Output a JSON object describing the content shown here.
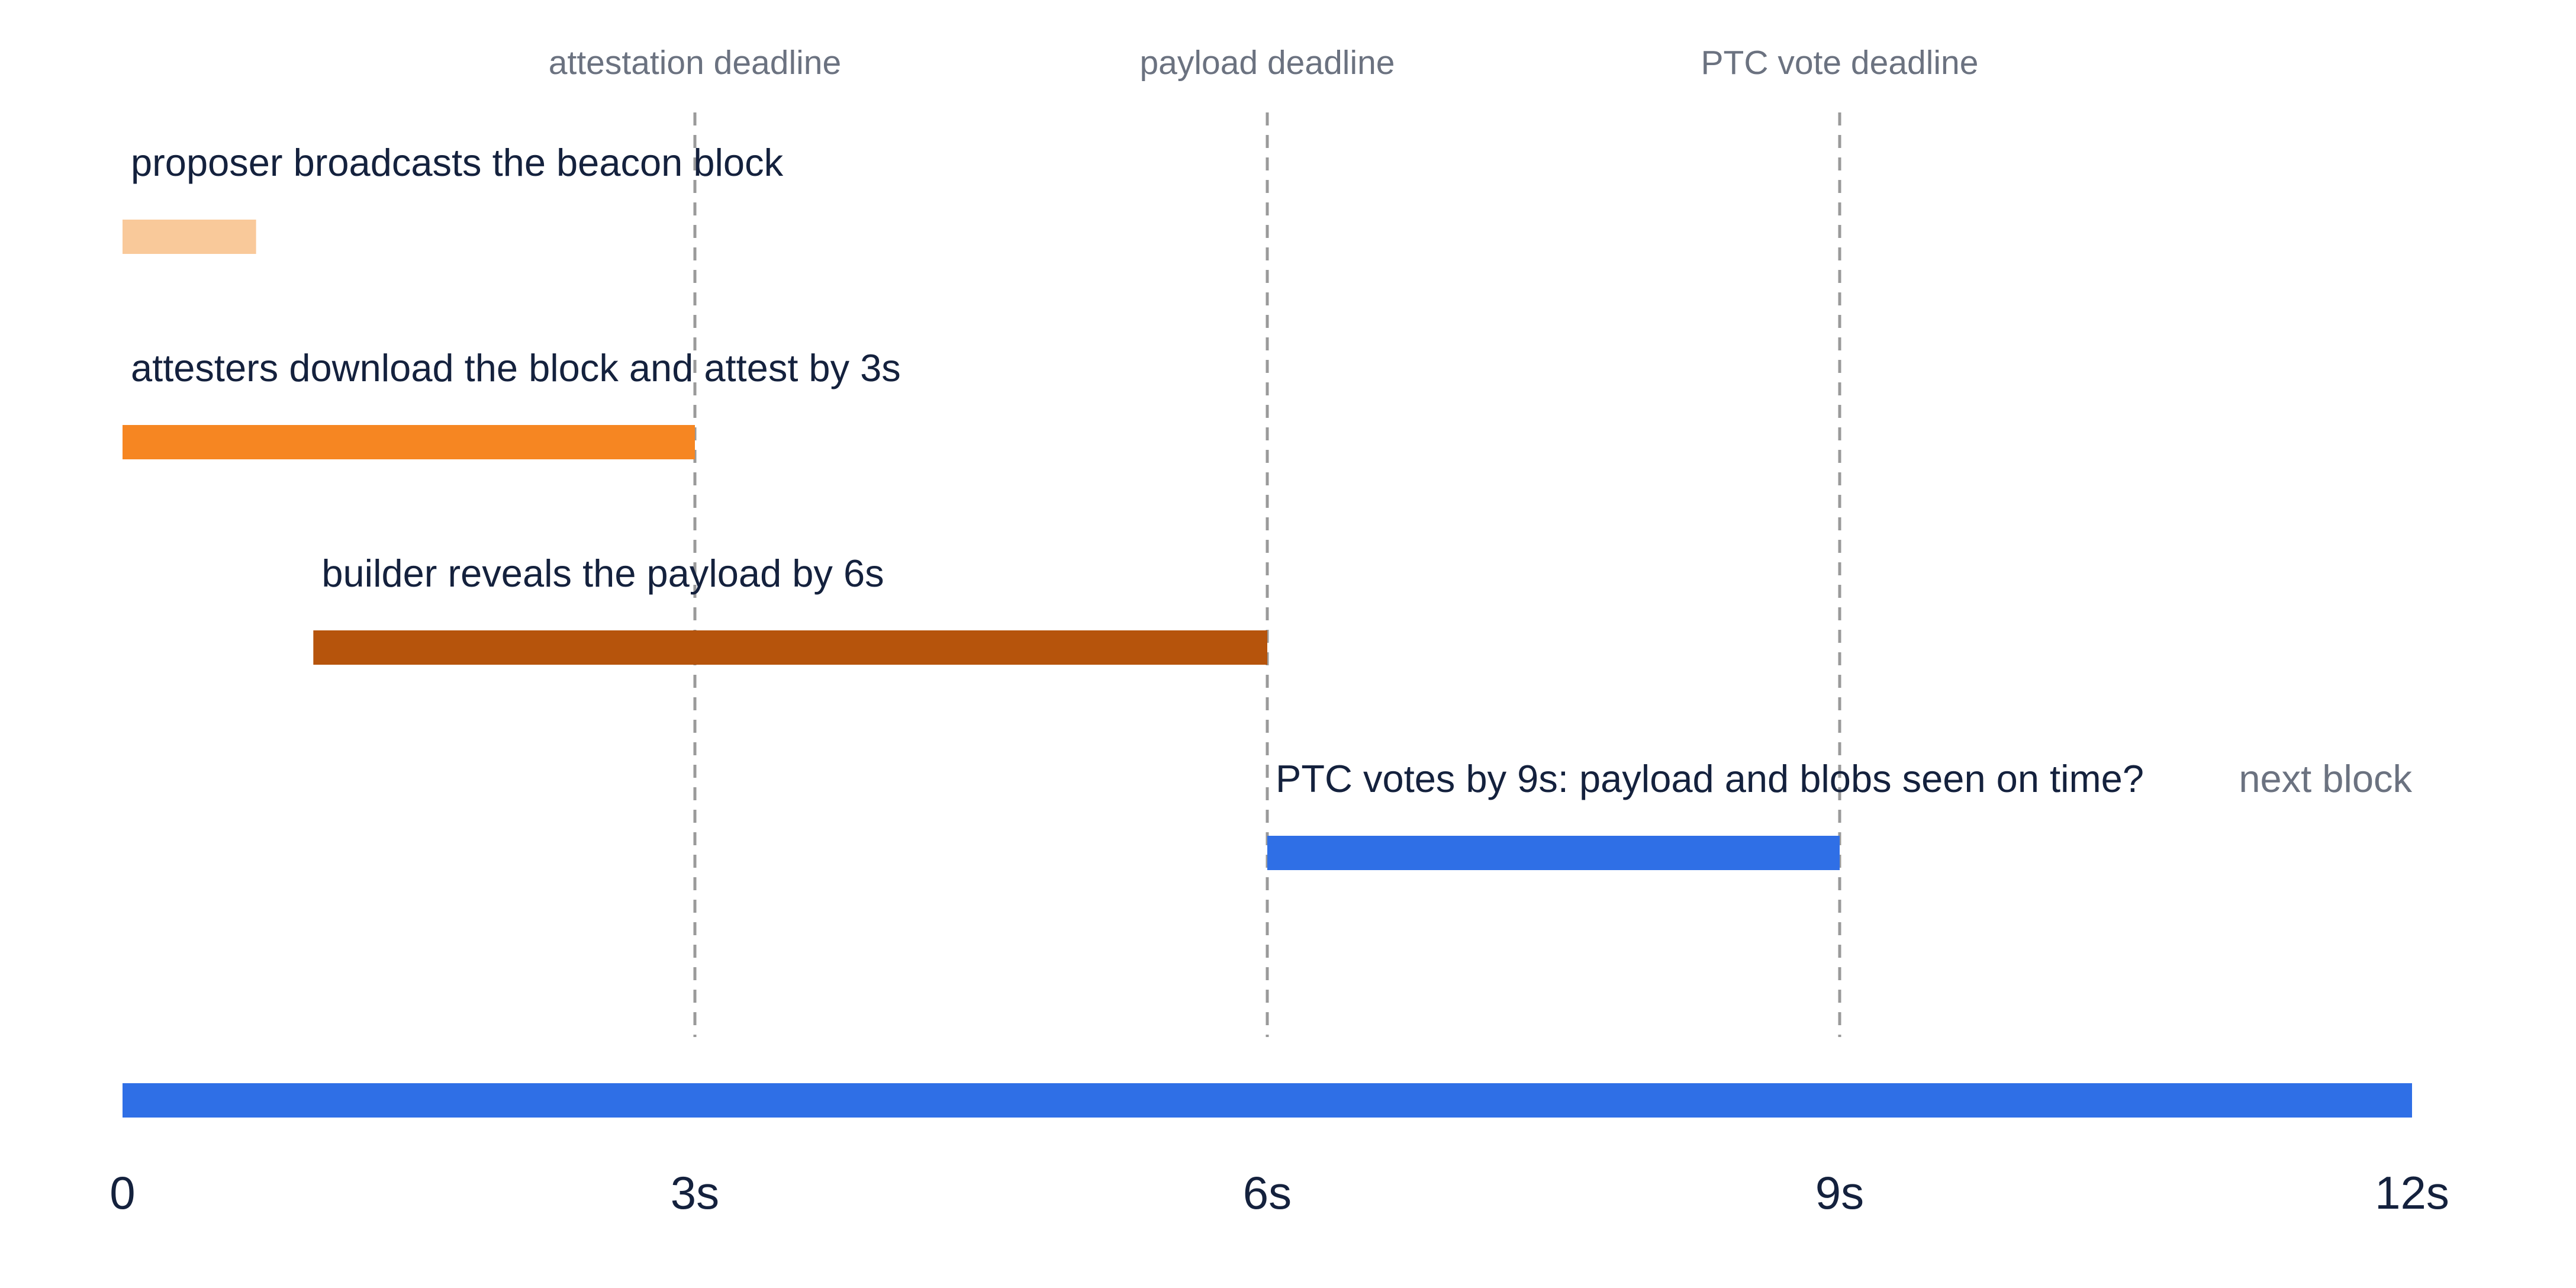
{
  "timeline": {
    "unit": "s",
    "start": 0,
    "end": 12,
    "ticks": [
      {
        "value": 0,
        "label": "0"
      },
      {
        "value": 3,
        "label": "3s"
      },
      {
        "value": 6,
        "label": "6s"
      },
      {
        "value": 9,
        "label": "9s"
      },
      {
        "value": 12,
        "label": "12s"
      }
    ],
    "deadlines": [
      {
        "time": 3,
        "label": "attestation deadline"
      },
      {
        "time": 6,
        "label": "payload deadline"
      },
      {
        "time": 9,
        "label": "PTC vote deadline"
      }
    ],
    "phases": [
      {
        "label": "proposer broadcasts the beacon block",
        "start": 0,
        "end": 0.7,
        "color": "#f9c99a"
      },
      {
        "label": "attesters download the block and attest by 3s",
        "start": 0,
        "end": 3,
        "color": "#f68622"
      },
      {
        "label": "builder reveals the payload by 6s",
        "start": 1,
        "end": 6,
        "color": "#b6540c"
      },
      {
        "label": "PTC votes by 9s: payload and blobs seen on time?",
        "start": 6,
        "end": 9,
        "color": "#2f6fe6"
      }
    ],
    "slot_bar": {
      "start": 0,
      "end": 12,
      "color": "#2f6fe6"
    },
    "note": {
      "label": "next block"
    }
  }
}
